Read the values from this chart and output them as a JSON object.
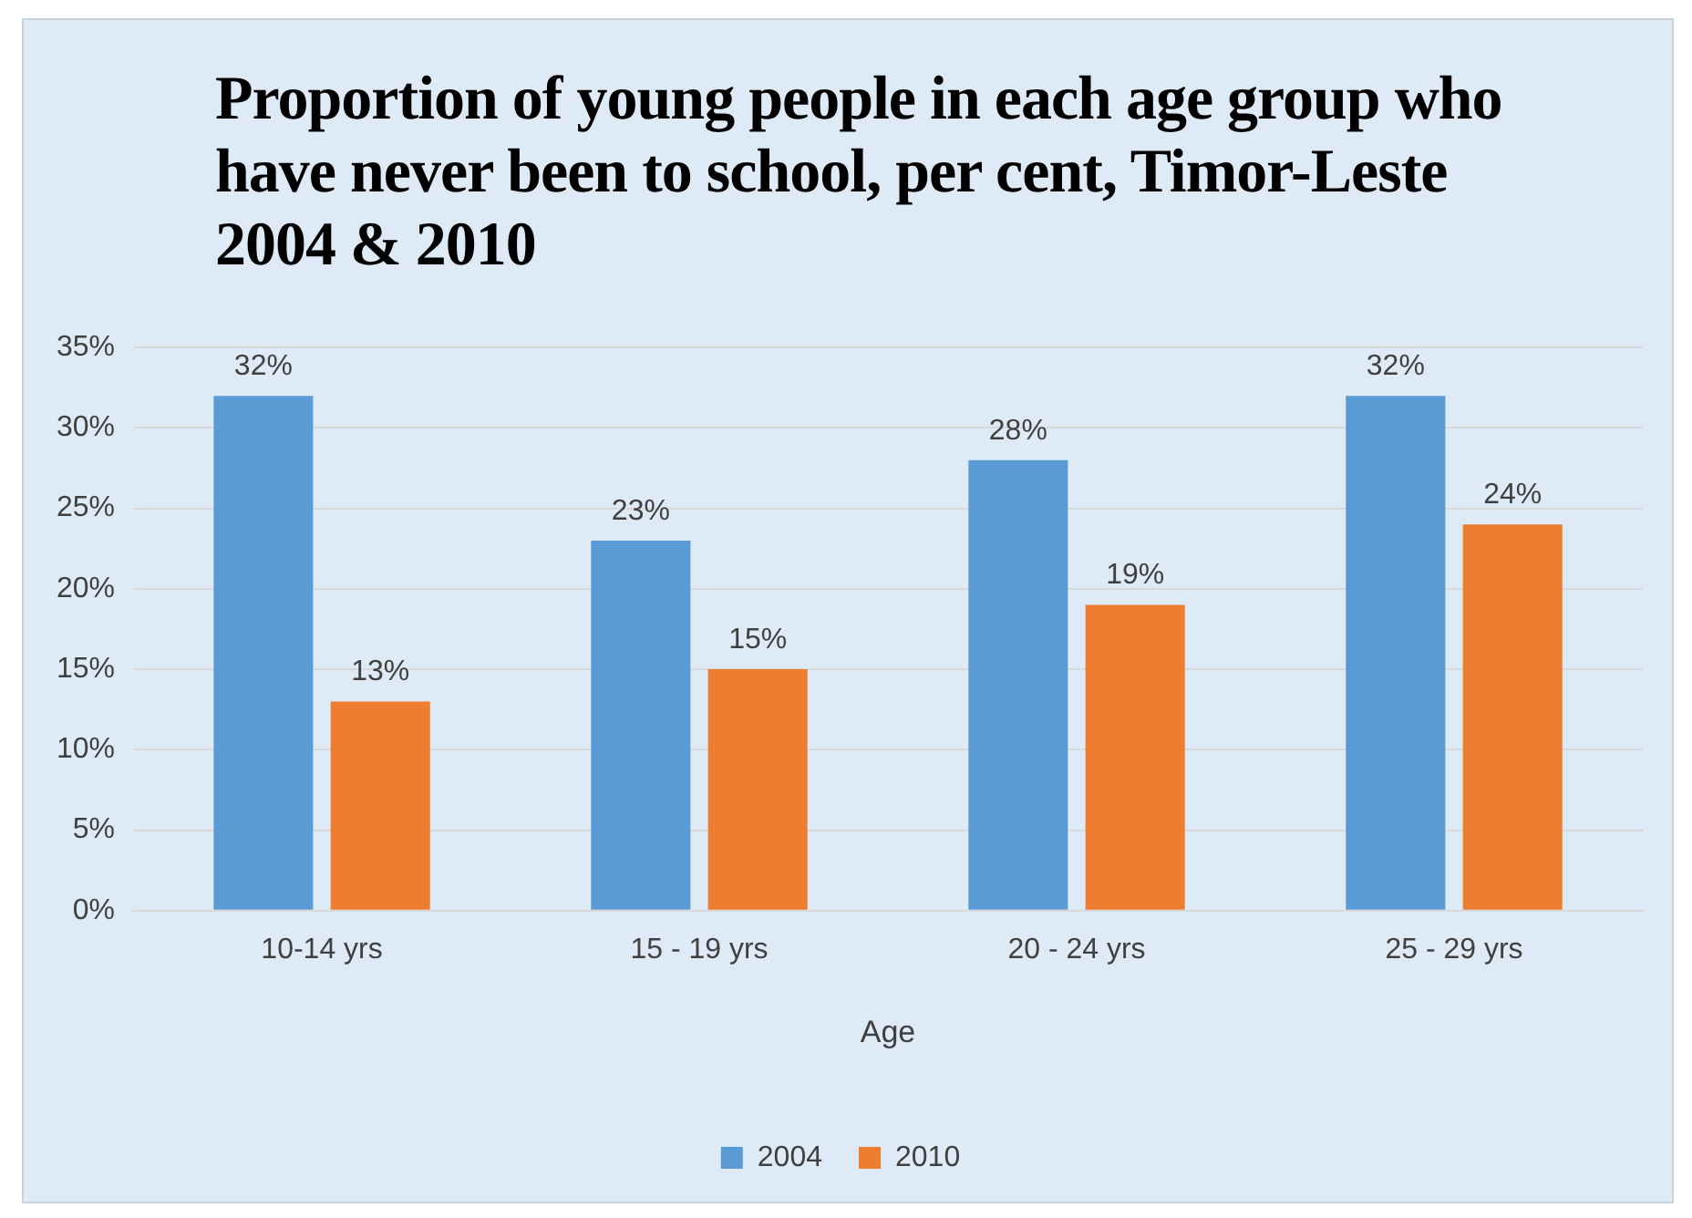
{
  "chart_data": {
    "type": "bar",
    "title": "Proportion of young people in each age group who have never been to school, per cent, Timor-Leste 2004 & 2010",
    "xlabel": "Age",
    "categories": [
      "10-14 yrs",
      "15 - 19 yrs",
      "20 - 24 yrs",
      "25 - 29 yrs"
    ],
    "series": [
      {
        "name": "2004",
        "color": "#5b9bd5",
        "values": [
          32,
          23,
          28,
          32
        ],
        "value_labels": [
          "32%",
          "23%",
          "28%",
          "32%"
        ]
      },
      {
        "name": "2010",
        "color": "#ed7d31",
        "values": [
          13,
          15,
          19,
          24
        ],
        "value_labels": [
          "13%",
          "15%",
          "19%",
          "24%"
        ]
      }
    ],
    "ylim": [
      0,
      35
    ],
    "yticks": [
      {
        "value": 0,
        "label": "0%"
      },
      {
        "value": 5,
        "label": "5%"
      },
      {
        "value": 10,
        "label": "10%"
      },
      {
        "value": 15,
        "label": "15%"
      },
      {
        "value": 20,
        "label": "20%"
      },
      {
        "value": 25,
        "label": "25%"
      },
      {
        "value": 30,
        "label": "30%"
      },
      {
        "value": 35,
        "label": "35%"
      }
    ],
    "grid": "y",
    "legend": "bottom"
  }
}
